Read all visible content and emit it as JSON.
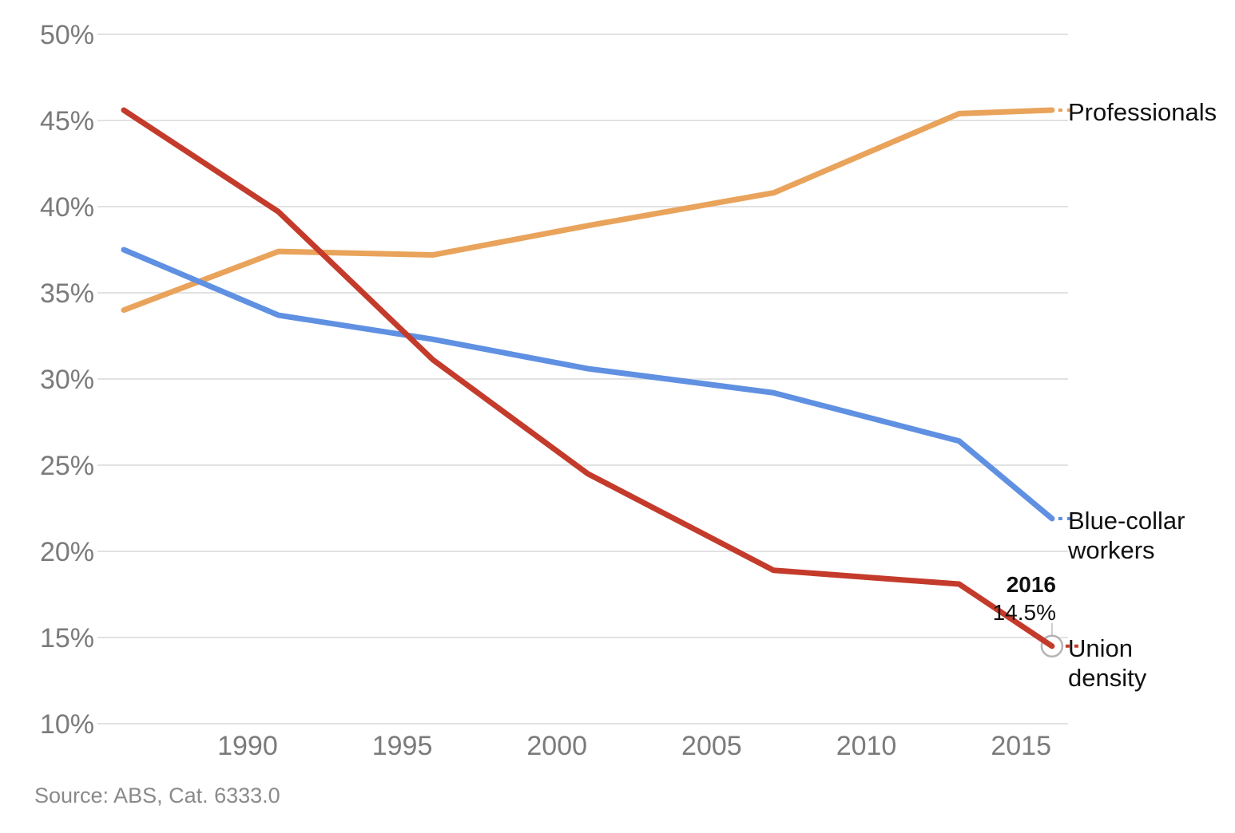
{
  "chart_data": {
    "type": "line",
    "x": [
      1986,
      1991,
      1996,
      2001,
      2007,
      2013,
      2016
    ],
    "series": [
      {
        "name": "Professionals",
        "color": "#e9a35b",
        "values": [
          34.0,
          37.4,
          37.2,
          38.9,
          40.8,
          45.4,
          45.6
        ]
      },
      {
        "name": "Blue-collar workers",
        "color": "#5f90e2",
        "values": [
          37.5,
          33.7,
          32.3,
          30.6,
          29.2,
          26.4,
          21.9
        ]
      },
      {
        "name": "Union density",
        "color": "#c43b2b",
        "values": [
          45.6,
          39.7,
          31.1,
          24.5,
          18.9,
          18.1,
          14.5
        ]
      }
    ],
    "title": "",
    "xlabel": "",
    "ylabel": "",
    "ylim": [
      10,
      50
    ],
    "xlim": [
      1986,
      2016.55
    ],
    "y_ticks": [
      50,
      45,
      40,
      35,
      30,
      25,
      20,
      15,
      10
    ],
    "y_tick_suffix": "%",
    "x_ticks": [
      1990,
      1995,
      2000,
      2005,
      2010,
      2015
    ],
    "grid": "horizontal-only",
    "legend_position": "right-of-line-ends",
    "end_marker": {
      "series": "Union density",
      "x": 2016,
      "y": 14.5,
      "style": "open-circle"
    }
  },
  "labels": {
    "professionals": [
      "Professionals"
    ],
    "blue_collar": [
      "Blue-collar",
      "workers"
    ],
    "union_density": [
      "Union",
      "density"
    ]
  },
  "annotation": {
    "year": "2016",
    "value": "14.5%"
  },
  "source": "Source: ABS, Cat. 6333.0",
  "colors": {
    "grid": "#e2e2e2",
    "tick_text": "#7b7b7b",
    "label_text": "#111111",
    "source_text": "#8a8a8a",
    "marker_stroke": "#b3b3b3",
    "leader_line": "#cccccc",
    "professionals": "#e9a35b",
    "blue_collar": "#5f90e2",
    "union_density": "#c43b2b"
  }
}
